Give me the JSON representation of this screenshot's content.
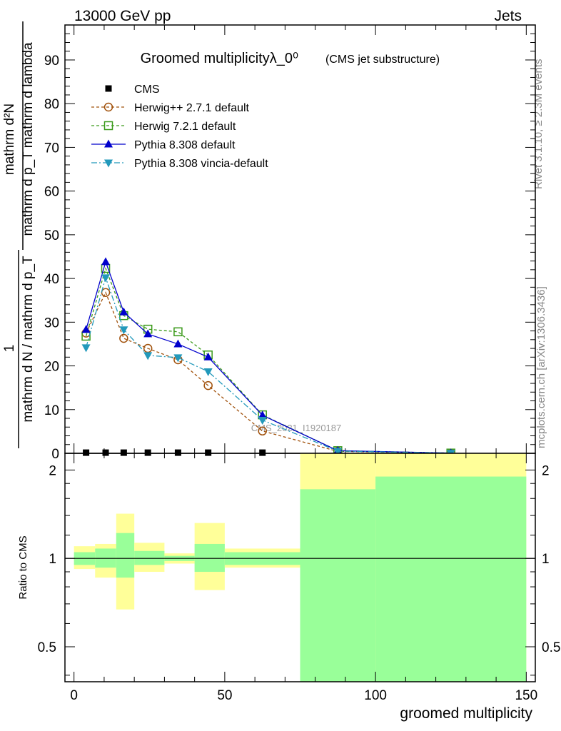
{
  "header": {
    "left": "13000 GeV pp",
    "right": "Jets"
  },
  "side_labels": {
    "rivet": "Rivet 3.1.10, ≥ 2.3M events",
    "mcplots": "mcplots.cern.ch [arXiv:1306.3436]"
  },
  "ylabel_main": {
    "numerator_one": "1",
    "denominator": "mathrm d N / mathrm d p_T",
    "numerator": "mathrm d²N",
    "denominator2": "mathrm d p_T mathrm d lambda"
  },
  "chart_data": [
    {
      "type": "line",
      "title": "Groomed multiplicityλ_0⁰",
      "subtitle": "(CMS jet substructure)",
      "watermark": "CMS_2021_I1920187",
      "xlabel": "groomed multiplicity",
      "ylabel": "(1 / mathrm d N / mathrm d p_T) mathrm d²N / mathrm d p_T mathrm d lambda",
      "xlim": [
        -3,
        153
      ],
      "ylim": [
        0,
        98
      ],
      "yticks": [
        0,
        10,
        20,
        30,
        40,
        50,
        60,
        70,
        80,
        90
      ],
      "legend_position": "top-left",
      "series": [
        {
          "name": "CMS",
          "color": "#000000",
          "marker": "square",
          "x": [
            4,
            10.5,
            16.5,
            24.5,
            34.5,
            44.5,
            62.5
          ],
          "y": [
            0.15,
            0.15,
            0.15,
            0.15,
            0.15,
            0.15,
            0.15
          ]
        },
        {
          "name": "Herwig++ 2.7.1 default",
          "color": "#a0500a",
          "marker": "circle",
          "x": [
            4,
            10.5,
            16.5,
            24.5,
            34.5,
            44.5,
            62.5,
            87.5,
            125
          ],
          "y": [
            27.5,
            36.8,
            26.3,
            24.0,
            21.4,
            15.5,
            5.1,
            0.45,
            0.05
          ]
        },
        {
          "name": "Herwig 7.2.1 default",
          "color": "#3a9a1a",
          "marker": "open-square",
          "x": [
            4,
            10.5,
            16.5,
            24.5,
            34.5,
            44.5,
            62.5,
            87.5,
            125
          ],
          "y": [
            26.8,
            42.3,
            31.5,
            28.4,
            27.8,
            22.5,
            8.8,
            0.6,
            0.05
          ]
        },
        {
          "name": "Pythia 8.308 default",
          "color": "#0000cc",
          "marker": "triangle-up",
          "x": [
            4,
            10.5,
            16.5,
            24.5,
            34.5,
            44.5,
            62.5,
            87.5,
            125
          ],
          "y": [
            28.3,
            43.8,
            32.3,
            27.3,
            25.0,
            22.0,
            8.7,
            0.6,
            0.05
          ]
        },
        {
          "name": "Pythia 8.308 vincia-default",
          "color": "#2299bb",
          "marker": "triangle-down",
          "x": [
            4,
            10.5,
            16.5,
            24.5,
            34.5,
            44.5,
            62.5,
            87.5,
            125
          ],
          "y": [
            24.2,
            40.2,
            28.3,
            22.4,
            21.9,
            18.7,
            7.6,
            0.5,
            0.05
          ]
        }
      ]
    },
    {
      "type": "area",
      "ylabel": "Ratio to CMS",
      "xlabel": "groomed multiplicity",
      "xlim": [
        -3,
        153
      ],
      "ylim": [
        0.38,
        2.28
      ],
      "yscale": "log",
      "yticks": [
        0.5,
        1,
        2
      ],
      "xticks": [
        0,
        50,
        100,
        150
      ],
      "reference_line": 1,
      "bins": [
        {
          "x0": 0,
          "x1": 7,
          "stat_lo": 0.95,
          "stat_hi": 1.05,
          "tot_lo": 0.92,
          "tot_hi": 1.1
        },
        {
          "x0": 7,
          "x1": 14,
          "stat_lo": 0.93,
          "stat_hi": 1.08,
          "tot_lo": 0.86,
          "tot_hi": 1.12
        },
        {
          "x0": 14,
          "x1": 20,
          "stat_lo": 0.86,
          "stat_hi": 1.22,
          "tot_lo": 0.67,
          "tot_hi": 1.42
        },
        {
          "x0": 20,
          "x1": 30,
          "stat_lo": 0.95,
          "stat_hi": 1.06,
          "tot_lo": 0.9,
          "tot_hi": 1.13
        },
        {
          "x0": 30,
          "x1": 40,
          "stat_lo": 0.98,
          "stat_hi": 1.02,
          "tot_lo": 0.96,
          "tot_hi": 1.04
        },
        {
          "x0": 40,
          "x1": 50,
          "stat_lo": 0.9,
          "stat_hi": 1.12,
          "tot_lo": 0.78,
          "tot_hi": 1.32
        },
        {
          "x0": 50,
          "x1": 75,
          "stat_lo": 0.95,
          "stat_hi": 1.05,
          "tot_lo": 0.93,
          "tot_hi": 1.08
        },
        {
          "x0": 75,
          "x1": 100,
          "stat_lo": 0.38,
          "stat_hi": 1.72,
          "tot_lo": 0.38,
          "tot_hi": 2.28
        },
        {
          "x0": 100,
          "x1": 150,
          "stat_lo": 0.38,
          "stat_hi": 1.9,
          "tot_lo": 0.38,
          "tot_hi": 2.28
        }
      ]
    }
  ],
  "colors": {
    "stat_band": "#99ff99",
    "total_band": "#ffff99"
  }
}
